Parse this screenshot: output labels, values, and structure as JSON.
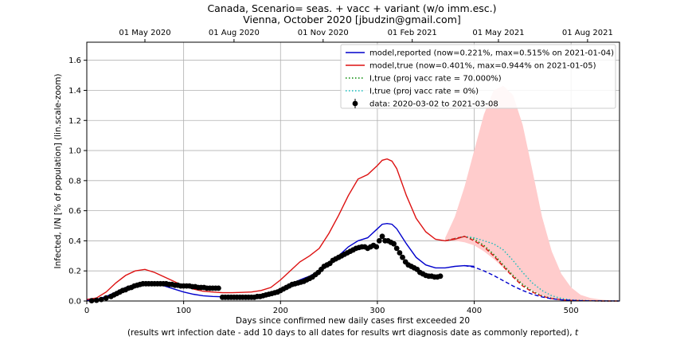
{
  "chart_data": {
    "type": "line",
    "title": "Canada, Scenario= seas. + vacc + variant (w/o imm.esc.)",
    "subtitle": "Vienna, October 2020 [jbudzin@gmail.com]",
    "xlabel": "Days since confirmed new daily cases first exceeded 20",
    "xlabel_note": "(results wrt infection date - add 10 days to all dates for results wrt diagnosis date as commonly reported),",
    "xlabel_symbol": "t",
    "ylabel": "Infected, I/N [% of population] (lin.scale-zoom)",
    "xlim": [
      0,
      550
    ],
    "ylim": [
      0,
      1.72
    ],
    "grid": true,
    "legend_position": "top-right",
    "x_ticks": [
      0,
      100,
      200,
      300,
      400,
      500
    ],
    "x_tick_labels": [
      "0",
      "100",
      "200",
      "300",
      "400",
      "500"
    ],
    "y_ticks": [
      0.0,
      0.2,
      0.4,
      0.6,
      0.8,
      1.0,
      1.2,
      1.4,
      1.6
    ],
    "y_tick_labels": [
      "0.0",
      "0.2",
      "0.4",
      "0.6",
      "0.8",
      "1.0",
      "1.2",
      "1.4",
      "1.6"
    ],
    "top_axis": {
      "ticks": [
        60,
        152,
        244,
        336,
        425,
        517
      ],
      "labels": [
        "01 May 2020",
        "01 Aug 2020",
        "01 Nov 2020",
        "01 Feb 2021",
        "01 May 2021",
        "01 Aug 2021"
      ]
    },
    "band": {
      "color": "#ffcccc",
      "x": [
        370,
        380,
        390,
        400,
        410,
        420,
        430,
        440,
        450,
        460,
        470,
        480,
        490,
        500,
        510,
        520,
        530,
        550
      ],
      "upper": [
        0.42,
        0.56,
        0.76,
        1.0,
        1.24,
        1.4,
        1.43,
        1.37,
        1.17,
        0.87,
        0.56,
        0.33,
        0.18,
        0.09,
        0.04,
        0.02,
        0.01,
        0.0
      ],
      "lower": [
        0.4,
        0.4,
        0.39,
        0.37,
        0.33,
        0.28,
        0.22,
        0.16,
        0.11,
        0.07,
        0.04,
        0.02,
        0.01,
        0.005,
        0.0,
        0.0,
        0.0,
        0.0
      ]
    },
    "series": [
      {
        "name": "model,reported (now=0.221%, max=0.515% on 2021-01-04)",
        "color": "#0000cc",
        "style": "solid",
        "x": [
          0,
          10,
          20,
          30,
          40,
          50,
          60,
          70,
          80,
          90,
          100,
          110,
          120,
          130,
          140,
          150,
          160,
          170,
          180,
          190,
          200,
          210,
          220,
          230,
          240,
          250,
          260,
          270,
          280,
          290,
          300,
          305,
          310,
          315,
          320,
          330,
          340,
          350,
          360,
          370,
          380,
          390,
          400
        ],
        "y": [
          0.005,
          0.01,
          0.03,
          0.06,
          0.09,
          0.11,
          0.12,
          0.115,
          0.1,
          0.08,
          0.06,
          0.045,
          0.035,
          0.03,
          0.028,
          0.028,
          0.03,
          0.033,
          0.04,
          0.055,
          0.08,
          0.11,
          0.14,
          0.165,
          0.2,
          0.25,
          0.3,
          0.36,
          0.4,
          0.42,
          0.48,
          0.51,
          0.515,
          0.51,
          0.48,
          0.38,
          0.29,
          0.24,
          0.22,
          0.22,
          0.23,
          0.235,
          0.23
        ]
      },
      {
        "name": "model,true (now=0.401%, max=0.944% on 2021-01-05)",
        "color": "#dd1111",
        "style": "solid",
        "x": [
          0,
          10,
          20,
          30,
          40,
          50,
          60,
          70,
          80,
          90,
          100,
          110,
          120,
          130,
          140,
          150,
          160,
          170,
          180,
          190,
          200,
          210,
          220,
          230,
          240,
          250,
          260,
          270,
          280,
          290,
          300,
          305,
          310,
          315,
          320,
          330,
          340,
          350,
          360,
          370,
          380,
          390
        ],
        "y": [
          0.01,
          0.02,
          0.06,
          0.12,
          0.17,
          0.2,
          0.21,
          0.19,
          0.16,
          0.13,
          0.1,
          0.08,
          0.065,
          0.06,
          0.055,
          0.055,
          0.057,
          0.06,
          0.07,
          0.09,
          0.14,
          0.2,
          0.26,
          0.3,
          0.35,
          0.45,
          0.57,
          0.7,
          0.81,
          0.84,
          0.9,
          0.935,
          0.944,
          0.93,
          0.88,
          0.7,
          0.55,
          0.46,
          0.41,
          0.4,
          0.41,
          0.43
        ]
      },
      {
        "name": "I,true (proj vacc rate = 70.000%)",
        "color": "#008800",
        "style": "dotted",
        "x": [
          370,
          380,
          390,
          400,
          410,
          420,
          430,
          440,
          450,
          460,
          470,
          480,
          490,
          500,
          510,
          520,
          530,
          550
        ],
        "y": [
          0.4,
          0.415,
          0.43,
          0.41,
          0.37,
          0.31,
          0.24,
          0.17,
          0.11,
          0.065,
          0.035,
          0.018,
          0.009,
          0.004,
          0.002,
          0.001,
          0.0,
          0.0
        ]
      },
      {
        "name": "I,true (proj vacc rate = 0%)",
        "color": "#11bbbb",
        "style": "dotted",
        "x": [
          370,
          380,
          390,
          400,
          410,
          420,
          430,
          440,
          450,
          460,
          470,
          480,
          490,
          500,
          510,
          520,
          530,
          550
        ],
        "y": [
          0.4,
          0.415,
          0.43,
          0.42,
          0.4,
          0.38,
          0.34,
          0.27,
          0.19,
          0.12,
          0.07,
          0.035,
          0.017,
          0.008,
          0.004,
          0.002,
          0.001,
          0.0
        ]
      },
      {
        "name": "projection red dashed",
        "color": "#dd1111",
        "style": "dashed",
        "x": [
          370,
          380,
          390,
          400,
          410,
          420,
          430,
          440,
          450,
          460,
          470,
          480,
          490,
          500,
          510,
          520,
          530,
          550
        ],
        "y": [
          0.4,
          0.415,
          0.43,
          0.4,
          0.36,
          0.3,
          0.23,
          0.16,
          0.1,
          0.06,
          0.032,
          0.016,
          0.008,
          0.004,
          0.002,
          0.001,
          0.0,
          0.0
        ]
      },
      {
        "name": "projection blue dashed",
        "color": "#0000cc",
        "style": "dashed",
        "x": [
          390,
          400,
          410,
          420,
          430,
          440,
          450,
          460,
          470,
          480,
          490,
          500,
          510,
          520,
          550
        ],
        "y": [
          0.235,
          0.225,
          0.2,
          0.17,
          0.135,
          0.1,
          0.07,
          0.045,
          0.027,
          0.015,
          0.008,
          0.004,
          0.002,
          0.001,
          0.0
        ]
      }
    ],
    "data_points": {
      "name": "data: 2020-03-02 to 2021-03-08",
      "color": "#000000",
      "x": [
        5,
        10,
        15,
        20,
        25,
        28,
        31,
        34,
        37,
        40,
        43,
        46,
        49,
        52,
        55,
        58,
        61,
        64,
        67,
        70,
        73,
        76,
        79,
        82,
        85,
        88,
        91,
        94,
        97,
        100,
        103,
        106,
        109,
        112,
        115,
        118,
        121,
        124,
        127,
        130,
        133,
        136,
        140,
        143,
        146,
        149,
        152,
        155,
        158,
        161,
        164,
        167,
        170,
        173,
        176,
        179,
        182,
        185,
        188,
        191,
        194,
        197,
        200,
        203,
        206,
        209,
        212,
        215,
        218,
        221,
        224,
        227,
        230,
        233,
        236,
        239,
        242,
        245,
        248,
        251,
        254,
        257,
        260,
        263,
        266,
        269,
        272,
        275,
        278,
        281,
        284,
        287,
        290,
        293,
        296,
        299,
        302,
        305,
        308,
        311,
        314,
        317,
        320,
        323,
        326,
        329,
        332,
        335,
        338,
        341,
        344,
        347,
        350,
        353,
        356,
        359,
        362,
        365
      ],
      "y": [
        0.002,
        0.005,
        0.01,
        0.02,
        0.03,
        0.04,
        0.05,
        0.06,
        0.07,
        0.075,
        0.085,
        0.09,
        0.1,
        0.105,
        0.11,
        0.115,
        0.115,
        0.115,
        0.115,
        0.115,
        0.115,
        0.115,
        0.115,
        0.115,
        0.11,
        0.11,
        0.105,
        0.105,
        0.1,
        0.1,
        0.1,
        0.1,
        0.095,
        0.095,
        0.09,
        0.09,
        0.09,
        0.085,
        0.085,
        0.085,
        0.085,
        0.085,
        0.025,
        0.025,
        0.025,
        0.025,
        0.025,
        0.025,
        0.025,
        0.025,
        0.025,
        0.025,
        0.025,
        0.025,
        0.03,
        0.03,
        0.035,
        0.04,
        0.045,
        0.05,
        0.055,
        0.06,
        0.07,
        0.08,
        0.09,
        0.1,
        0.11,
        0.115,
        0.12,
        0.125,
        0.13,
        0.14,
        0.15,
        0.16,
        0.175,
        0.19,
        0.21,
        0.23,
        0.24,
        0.25,
        0.27,
        0.28,
        0.29,
        0.3,
        0.31,
        0.32,
        0.33,
        0.34,
        0.35,
        0.355,
        0.36,
        0.36,
        0.35,
        0.36,
        0.37,
        0.36,
        0.4,
        0.43,
        0.4,
        0.4,
        0.39,
        0.38,
        0.35,
        0.32,
        0.29,
        0.26,
        0.24,
        0.23,
        0.22,
        0.21,
        0.19,
        0.18,
        0.17,
        0.165,
        0.165,
        0.16,
        0.16,
        0.165
      ]
    }
  }
}
